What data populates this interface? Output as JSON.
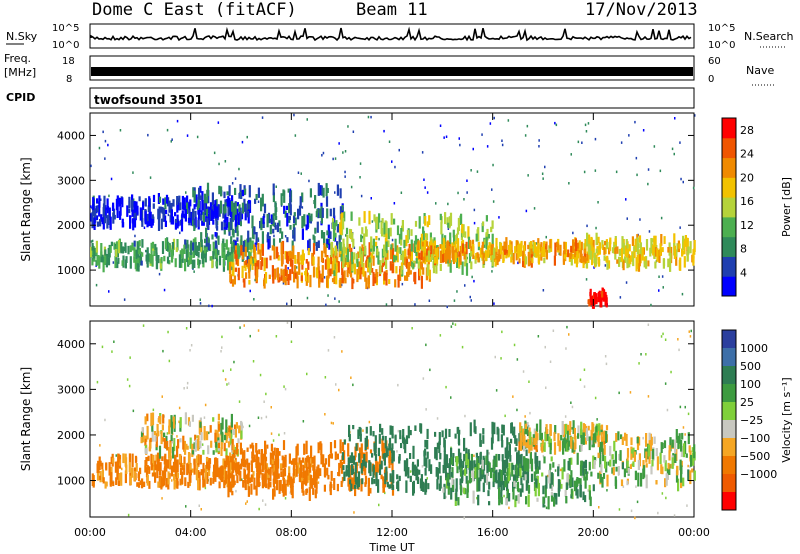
{
  "header": {
    "station": "Dome C East (fitACF)",
    "beam": "Beam 11",
    "date": "17/Nov/2013"
  },
  "status_panels": {
    "nsky_label": "N.Sky",
    "nsky_ticks": [
      "10^5",
      "10^0"
    ],
    "nsearch_label": "N.Search",
    "nsearch_ticks": [
      "10^5",
      "10^0"
    ],
    "freq_label": "Freq.",
    "freq_unit": "[MHz]",
    "freq_ticks": [
      "18",
      "8"
    ],
    "nave_label": "Nave",
    "nave_ticks": [
      "60",
      "0"
    ],
    "cpid_label": "CPID",
    "cpid_value": "twofsound 3501"
  },
  "colors": {
    "power_scale": [
      "#0000ff",
      "#1f3fb0",
      "#2f8a5a",
      "#4caf50",
      "#b5d33a",
      "#f2c200",
      "#f08a00",
      "#f05500",
      "#ff0000"
    ],
    "velocity_scale": [
      "#2b3f9e",
      "#3d6fa8",
      "#2e7d53",
      "#3d9b40",
      "#7fcf3a",
      "#c8c8c0",
      "#f5a623",
      "#f07800",
      "#ef5a00",
      "#ff0000"
    ]
  },
  "chart_data": [
    {
      "type": "heatmap",
      "name": "power",
      "xlabel": "",
      "ylabel": "Slant Range [km]",
      "xlim": [
        0,
        24
      ],
      "ylim": [
        200,
        4500
      ],
      "x_ticks": [
        "00:00",
        "04:00",
        "08:00",
        "12:00",
        "16:00",
        "20:00",
        "00:00"
      ],
      "y_ticks": [
        "1000",
        "2000",
        "3000",
        "4000"
      ],
      "colorbar": {
        "label": "Power [dB]",
        "ticks": [
          "4",
          "8",
          "12",
          "16",
          "20",
          "24",
          "28"
        ],
        "range": [
          0,
          30
        ]
      },
      "regions": [
        {
          "t0": 0.0,
          "t1": 6.5,
          "r0": 1100,
          "r1": 1600,
          "level": 10
        },
        {
          "t0": 0.0,
          "t1": 6.0,
          "r0": 2000,
          "r1": 2600,
          "level": 3
        },
        {
          "t0": 4.0,
          "t1": 10.0,
          "r0": 1500,
          "r1": 2800,
          "level": 6
        },
        {
          "t0": 5.5,
          "t1": 13.5,
          "r0": 700,
          "r1": 1500,
          "level": 22
        },
        {
          "t0": 9.5,
          "t1": 16.0,
          "r0": 1000,
          "r1": 2200,
          "level": 14
        },
        {
          "t0": 13.0,
          "t1": 20.0,
          "r0": 1200,
          "r1": 1600,
          "level": 20
        },
        {
          "t0": 19.5,
          "t1": 24.0,
          "r0": 1100,
          "r1": 1700,
          "level": 18
        },
        {
          "t0": 19.7,
          "t1": 20.5,
          "r0": 250,
          "r1": 500,
          "level": 29
        }
      ]
    },
    {
      "type": "heatmap",
      "name": "velocity",
      "xlabel": "Time UT",
      "ylabel": "Slant Range [km]",
      "xlim": [
        0,
        24
      ],
      "ylim": [
        200,
        4500
      ],
      "x_ticks": [
        "00:00",
        "04:00",
        "08:00",
        "12:00",
        "16:00",
        "20:00",
        "00:00"
      ],
      "y_ticks": [
        "1000",
        "2000",
        "3000",
        "4000"
      ],
      "colorbar": {
        "label": "Velocity [m s⁻¹]",
        "ticks": [
          "1000",
          "500",
          "100",
          "25",
          "−25",
          "−100",
          "−500",
          "−1000"
        ]
      },
      "regions": [
        {
          "t0": 0.0,
          "t1": 9.0,
          "r0": 900,
          "r1": 1500,
          "level": -150
        },
        {
          "t0": 2.0,
          "t1": 6.0,
          "r0": 1600,
          "r1": 2400,
          "level": -20
        },
        {
          "t0": 5.0,
          "t1": 12.0,
          "r0": 700,
          "r1": 1800,
          "level": -300
        },
        {
          "t0": 10.0,
          "t1": 17.5,
          "r0": 800,
          "r1": 2200,
          "level": 300
        },
        {
          "t0": 14.0,
          "t1": 20.0,
          "r0": 500,
          "r1": 1500,
          "level": 80
        },
        {
          "t0": 17.0,
          "t1": 20.5,
          "r0": 1700,
          "r1": 2200,
          "level": -10
        },
        {
          "t0": 20.0,
          "t1": 24.0,
          "r0": 900,
          "r1": 2000,
          "level": 5
        }
      ]
    }
  ]
}
